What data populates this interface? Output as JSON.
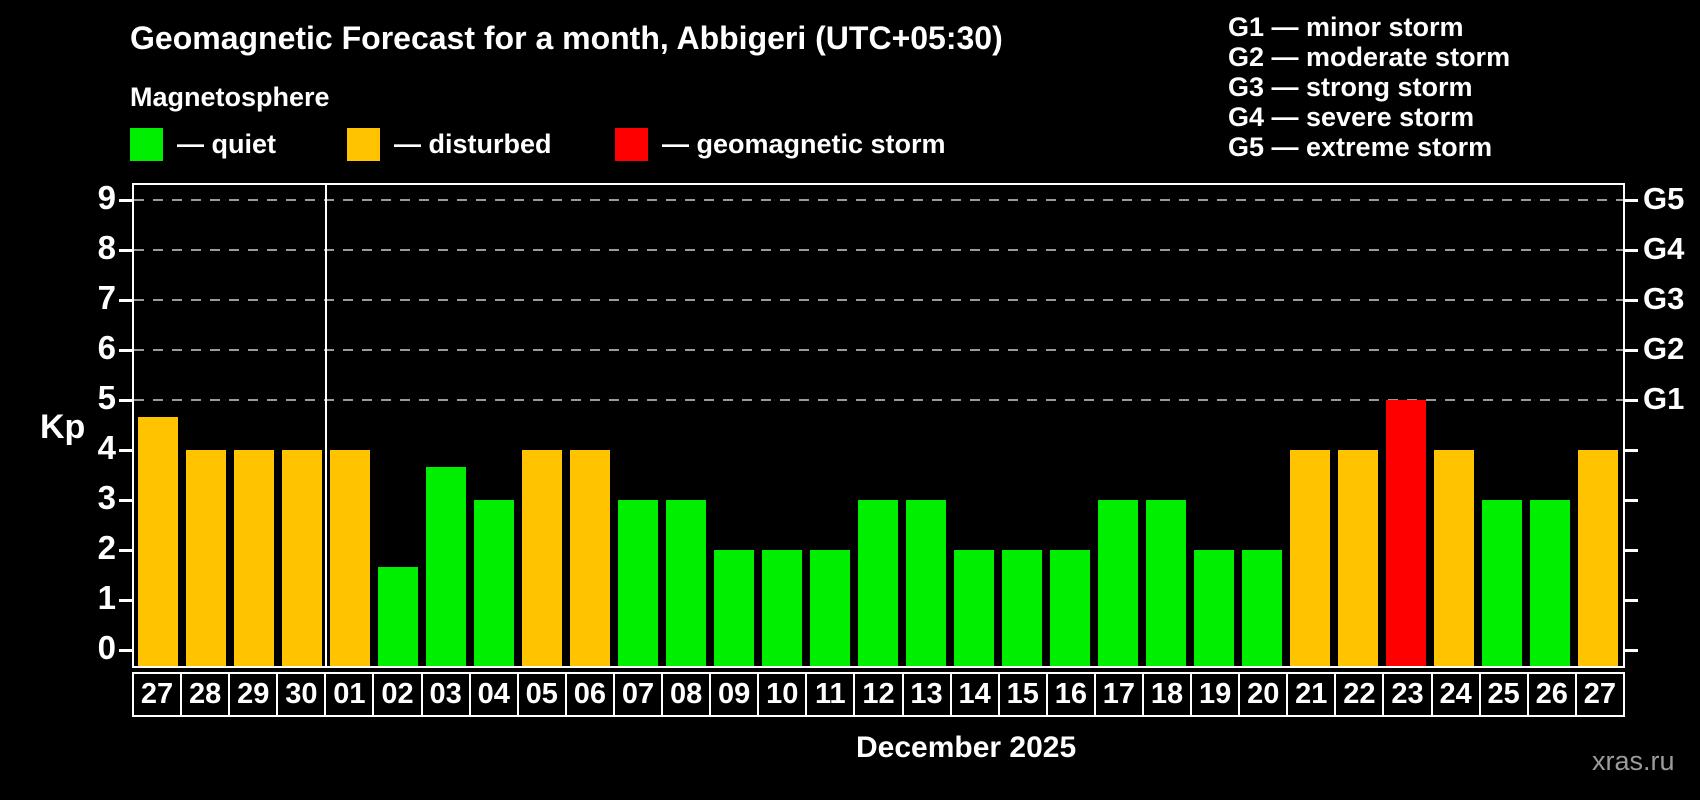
{
  "header": {
    "title": "Geomagnetic Forecast for a month, Abbigeri (UTC+05:30)",
    "subtitle": "Magnetosphere",
    "legend": [
      {
        "name": "quiet",
        "label": "— quiet",
        "color": "#00ee00"
      },
      {
        "name": "disturbed",
        "label": "— disturbed",
        "color": "#ffc300"
      },
      {
        "name": "storm",
        "label": "— geomagnetic storm",
        "color": "#ff0000"
      }
    ],
    "g_legend": [
      "G1 — minor storm",
      "G2 — moderate storm",
      "G3 — strong storm",
      "G4 — severe storm",
      "G5 — extreme storm"
    ]
  },
  "chart_data": {
    "type": "bar",
    "title": "Geomagnetic Forecast for a month, Abbigeri (UTC+05:30)",
    "xlabel": "December 2025",
    "ylabel": "Kp",
    "ylim": [
      0,
      9.6
    ],
    "grid": "dashed horizontal lines at Kp 5-9 only",
    "yticks": [
      0,
      1,
      2,
      3,
      4,
      5,
      6,
      7,
      8,
      9
    ],
    "gridline_kp": [
      5,
      6,
      7,
      8,
      9
    ],
    "right_axis": [
      {
        "kp": 5,
        "label": "G1"
      },
      {
        "kp": 6,
        "label": "G2"
      },
      {
        "kp": 7,
        "label": "G3"
      },
      {
        "kp": 8,
        "label": "G4"
      },
      {
        "kp": 9,
        "label": "G5"
      }
    ],
    "categories": [
      "27",
      "28",
      "29",
      "30",
      "01",
      "02",
      "03",
      "04",
      "05",
      "06",
      "07",
      "08",
      "09",
      "10",
      "11",
      "12",
      "13",
      "14",
      "15",
      "16",
      "17",
      "18",
      "19",
      "20",
      "21",
      "22",
      "23",
      "24",
      "25",
      "26",
      "27"
    ],
    "values": [
      4.67,
      4,
      4,
      4,
      4,
      1.67,
      3.67,
      3,
      4,
      4,
      3,
      3,
      2,
      2,
      2,
      3,
      3,
      2,
      2,
      2,
      3,
      3,
      2,
      2,
      4,
      4,
      5,
      4,
      3,
      3,
      4
    ],
    "statuses": [
      "disturbed",
      "disturbed",
      "disturbed",
      "disturbed",
      "disturbed",
      "quiet",
      "quiet",
      "quiet",
      "disturbed",
      "disturbed",
      "quiet",
      "quiet",
      "quiet",
      "quiet",
      "quiet",
      "quiet",
      "quiet",
      "quiet",
      "quiet",
      "quiet",
      "quiet",
      "quiet",
      "quiet",
      "quiet",
      "disturbed",
      "disturbed",
      "storm",
      "disturbed",
      "quiet",
      "quiet",
      "disturbed"
    ],
    "palette": {
      "quiet": "#00ee00",
      "disturbed": "#ffc300",
      "storm": "#ff0000"
    },
    "month_separator_after_index": 3,
    "legend_position": "top-left"
  },
  "footer": {
    "month_label": "December 2025",
    "watermark": "xras.ru"
  }
}
